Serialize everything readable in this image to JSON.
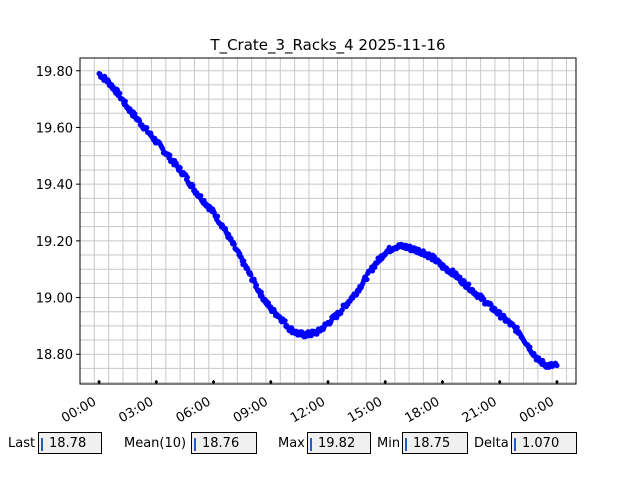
{
  "chart_data": {
    "type": "scatter",
    "title": "T_Crate_3_Racks_4 2025-11-16",
    "xlabel": "",
    "ylabel": "",
    "x_tick_labels": [
      "00:00",
      "03:00",
      "06:00",
      "09:00",
      "12:00",
      "15:00",
      "18:00",
      "21:00",
      "00:00"
    ],
    "y_tick_labels": [
      "18.80",
      "19.00",
      "19.20",
      "19.40",
      "19.60",
      "19.80"
    ],
    "y_ticks": [
      18.8,
      19.0,
      19.2,
      19.4,
      19.6,
      19.8
    ],
    "x_ticks_hours": [
      0,
      3,
      6,
      9,
      12,
      15,
      18,
      21,
      24
    ],
    "xlim_hours": [
      -1.0,
      25.0
    ],
    "ylim": [
      18.695,
      19.845
    ],
    "grid": true,
    "series": [
      {
        "color": "#0000ff",
        "x_hours": [
          0.0,
          0.5,
          1.0,
          1.5,
          2.0,
          2.5,
          3.0,
          3.5,
          4.0,
          4.5,
          5.0,
          5.5,
          6.0,
          6.5,
          7.0,
          7.5,
          8.0,
          8.5,
          9.0,
          9.5,
          10.0,
          10.5,
          11.0,
          11.5,
          12.0,
          12.5,
          13.0,
          13.5,
          14.0,
          14.5,
          15.0,
          15.5,
          16.0,
          16.5,
          17.0,
          17.5,
          18.0,
          18.5,
          19.0,
          19.5,
          20.0,
          20.5,
          21.0,
          21.5,
          22.0,
          22.5,
          23.0,
          23.5,
          24.0
        ],
        "y": [
          19.79,
          19.76,
          19.72,
          19.67,
          19.63,
          19.59,
          19.55,
          19.51,
          19.47,
          19.43,
          19.38,
          19.34,
          19.3,
          19.25,
          19.19,
          19.13,
          19.07,
          19.01,
          18.96,
          18.93,
          18.89,
          18.87,
          18.87,
          18.88,
          18.91,
          18.94,
          18.98,
          19.02,
          19.07,
          19.12,
          19.16,
          19.18,
          19.18,
          19.17,
          19.16,
          19.14,
          19.11,
          19.09,
          19.06,
          19.03,
          19.0,
          18.97,
          18.94,
          18.91,
          18.88,
          18.83,
          18.78,
          18.76,
          18.76
        ]
      }
    ]
  },
  "stats": {
    "last": {
      "label": "Last",
      "value": "18.78"
    },
    "mean": {
      "label": "Mean(10)",
      "value": "18.76"
    },
    "max": {
      "label": "Max",
      "value": "19.82"
    },
    "min": {
      "label": "Min",
      "value": "18.75"
    },
    "delta": {
      "label": "Delta",
      "value": "1.070"
    }
  }
}
